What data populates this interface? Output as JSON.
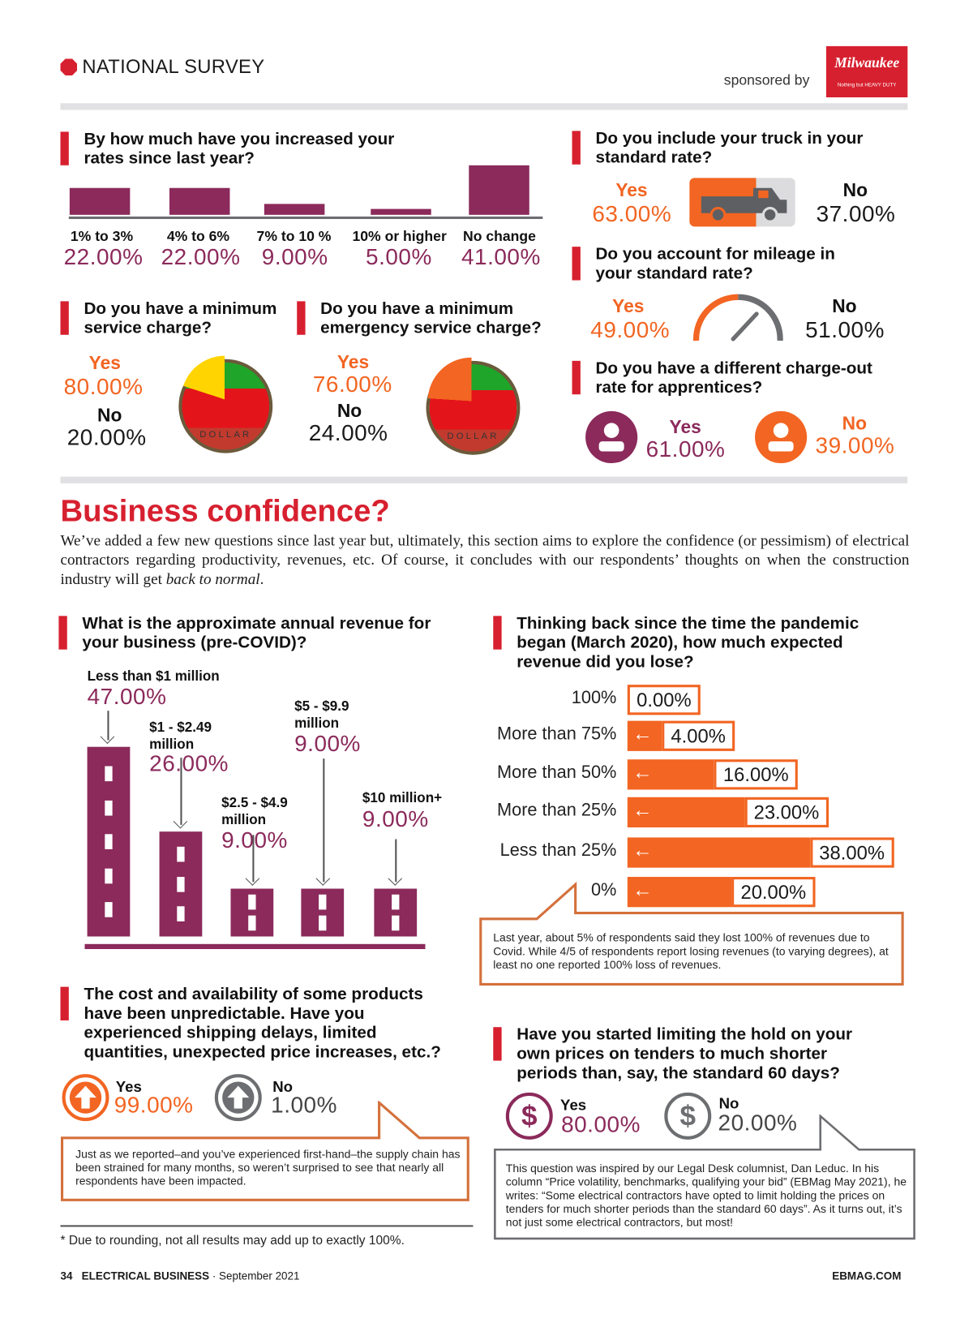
{
  "header": {
    "title": "NATIONAL SURVEY",
    "sponsored_by": "sponsored by",
    "sponsor_logo_text": "Milwaukee",
    "sponsor_tagline": "Nothing but HEAVY DUTY"
  },
  "colors": {
    "red": "#d7202f",
    "purple": "#8b2a5b",
    "orange": "#f26522",
    "gray": "#6d6e71"
  },
  "rate_increase": {
    "question": "By how much have you increased your rates since last year?",
    "chart_data": {
      "type": "bar",
      "categories": [
        "1% to 3%",
        "4% to 6%",
        "7% to 10 %",
        "10% or higher",
        "No change"
      ],
      "values": [
        22,
        22,
        9,
        5,
        41
      ],
      "labels": [
        "22.00%",
        "22.00%",
        "9.00%",
        "5.00%",
        "41.00%"
      ]
    }
  },
  "truck": {
    "question": "Do you include your truck in your standard rate?",
    "yes_label": "Yes",
    "yes_value": "63.00%",
    "no_label": "No",
    "no_value": "37.00%",
    "yes_fraction": 0.63
  },
  "mileage": {
    "question": "Do you account for mileage in your standard rate?",
    "yes_label": "Yes",
    "yes_value": "49.00%",
    "no_label": "No",
    "no_value": "51.00%"
  },
  "min_service": {
    "question": "Do you have a minimum service charge?",
    "yes_label": "Yes",
    "yes_value": "80.00%",
    "no_label": "No",
    "no_value": "20.00%",
    "coin_text": "DOLLAR"
  },
  "min_emergency": {
    "question": "Do you have a minimum emergency service charge?",
    "yes_label": "Yes",
    "yes_value": "76.00%",
    "no_label": "No",
    "no_value": "24.00%",
    "coin_text": "DOLLAR"
  },
  "apprentices": {
    "question": "Do you have a different charge-out rate for apprentices?",
    "yes_label": "Yes",
    "yes_value": "61.00%",
    "no_label": "No",
    "no_value": "39.00%"
  },
  "confidence": {
    "title": "Business confidence?",
    "intro": "We’ve added a few new questions since last year but, ultimately, this section aims to explore the confidence (or pessimism) of electrical contractors regarding productivity, revenues, etc. Of course, it concludes with our respondents’ thoughts on when the construction industry will get ",
    "intro_italic": "back to normal",
    "intro_end": "."
  },
  "annual_revenue": {
    "question": "What is the approximate annual revenue for your business (pre-COVID)?",
    "chart_data": {
      "type": "bar",
      "categories": [
        "Less than $1 million",
        "$1 - $2.49 million",
        "$2.5 - $4.9 million",
        "$5 - $9.9 million",
        "$10 million+"
      ],
      "values": [
        47,
        26,
        9,
        9,
        9
      ],
      "labels": [
        "47.00%",
        "26.00%",
        "9.00%",
        "9.00%",
        "9.00%"
      ]
    }
  },
  "revenue_lost": {
    "question": "Thinking back since the time the pandemic began (March 2020), how much expected revenue did you lose?",
    "chart_data": {
      "type": "bar",
      "orientation": "horizontal",
      "categories": [
        "100%",
        "More than 75%",
        "More than 50%",
        "More than 25%",
        "Less than 25%",
        "0%"
      ],
      "values": [
        0,
        4,
        16,
        23,
        38,
        20
      ],
      "labels": [
        "0.00%",
        "4.00%",
        "16.00%",
        "23.00%",
        "38.00%",
        "20.00%"
      ]
    },
    "note": "Last year, about 5% of respondents said they lost 100% of revenues due to Covid. While 4/5 of respondents report losing revenues (to varying degrees), at least no one reported 100% loss of revenues."
  },
  "supply": {
    "question": "The cost and availability of some products have been unpredictable. Have you experienced shipping delays, limited quantities, unexpected price increases, etc.?",
    "yes_label": "Yes",
    "yes_value": "99.00%",
    "no_label": "No",
    "no_value": "1.00%",
    "note": "Just as we reported–and you’ve experienced first-hand–the supply chain has been strained for many months, so weren’t surprised to see that nearly all respondents have been impacted."
  },
  "tenders": {
    "question": "Have you started limiting the hold on your own prices on tenders to much shorter periods than, say, the standard 60 days?",
    "yes_label": "Yes",
    "yes_value": "80.00%",
    "no_label": "No",
    "no_value": "20.00%",
    "note": "This question was inspired by our Legal Desk columnist, Dan Leduc. In his column “Price volatility, benchmarks, qualifying your bid” (EBMag May 2021), he writes: “Some electrical contractors have opted to limit holding the prices on tenders for much shorter periods than the standard 60 days”. As it turns out, it’s not just some electrical contractors, but most!"
  },
  "footnote": "* Due to rounding, not all results may add up to exactly 100%.",
  "footer": {
    "page": "34",
    "publication": "ELECTRICAL BUSINESS",
    "date": "· September 2021",
    "site": "EBMAG.COM"
  }
}
